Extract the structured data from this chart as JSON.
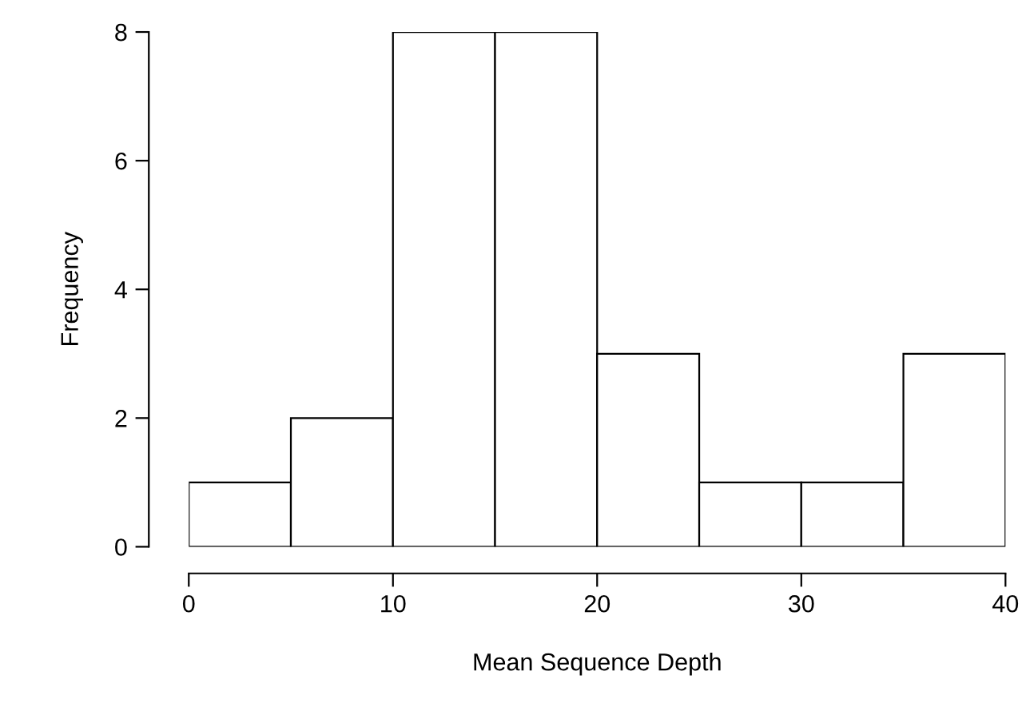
{
  "chart_data": {
    "type": "histogram",
    "xlabel": "Mean Sequence Depth",
    "ylabel": "Frequency",
    "bins": [
      0,
      5,
      10,
      15,
      20,
      25,
      30,
      35,
      40
    ],
    "values": [
      1,
      2,
      8,
      8,
      3,
      1,
      1,
      3
    ],
    "color": "#ffffff",
    "xlim": [
      0,
      40
    ],
    "xticks": [
      0,
      10,
      20,
      30,
      40
    ],
    "ylim": [
      0,
      8
    ],
    "yticks": [
      0,
      2,
      4,
      6,
      8
    ],
    "grid": false
  }
}
